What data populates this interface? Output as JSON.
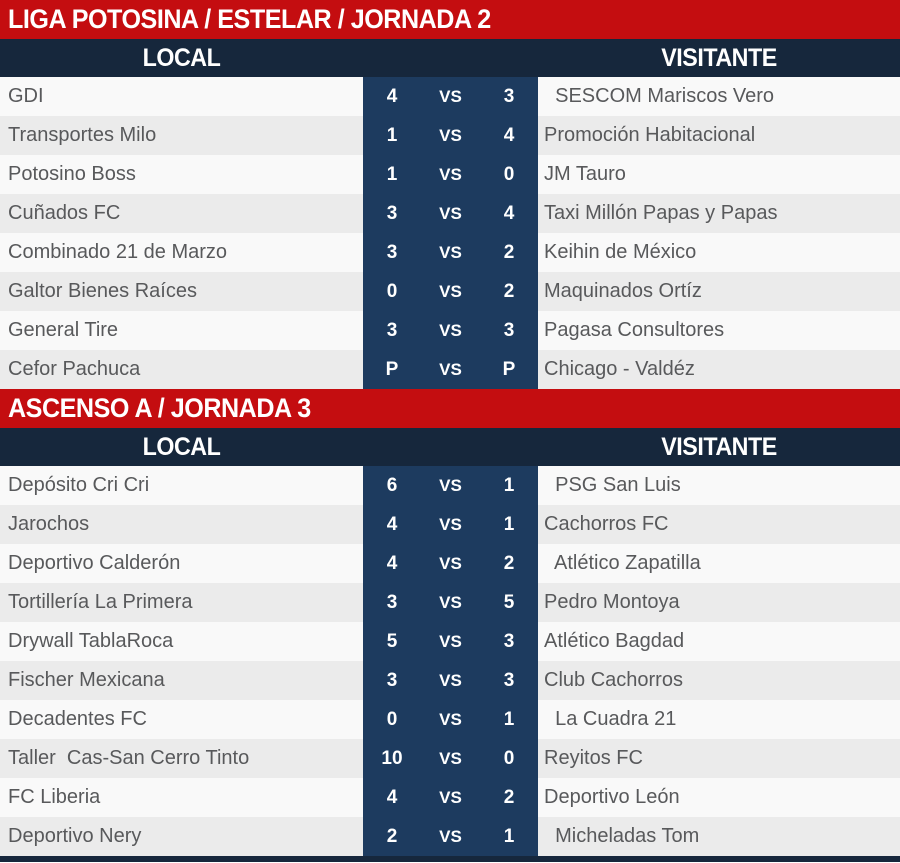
{
  "page": {
    "vs_label": "VS",
    "column_headers": {
      "local": "LOCAL",
      "visitante": "VISITANTE"
    },
    "colors": {
      "band_red": "#c40d10",
      "header_navy": "#16273c",
      "score_navy": "#1d3b5f",
      "row_light": "#f9f9f9",
      "row_alt": "#ebebeb",
      "team_text": "#58595b"
    }
  },
  "sections": [
    {
      "title": "LIGA POTOSINA / ESTELAR / JORNADA 2",
      "matches": [
        {
          "local": "GDI",
          "local_score": "4",
          "visitante_score": "3",
          "visitante": "  SESCOM Mariscos Vero"
        },
        {
          "local": "Transportes Milo",
          "local_score": "1",
          "visitante_score": "4",
          "visitante": "Promoción Habitacional"
        },
        {
          "local": "Potosino Boss",
          "local_score": "1",
          "visitante_score": "0",
          "visitante": "JM Tauro"
        },
        {
          "local": "Cuñados FC",
          "local_score": "3",
          "visitante_score": "4",
          "visitante": "Taxi Millón Papas y Papas"
        },
        {
          "local": "Combinado 21 de Marzo",
          "local_score": "3",
          "visitante_score": "2",
          "visitante": "Keihin de México"
        },
        {
          "local": "Galtor Bienes Raíces",
          "local_score": "0",
          "visitante_score": "2",
          "visitante": "Maquinados Ortíz"
        },
        {
          "local": "General Tire",
          "local_score": "3",
          "visitante_score": "3",
          "visitante": "Pagasa Consultores"
        },
        {
          "local": "Cefor Pachuca",
          "local_score": "P",
          "visitante_score": "P",
          "visitante": "Chicago - Valdéz"
        }
      ]
    },
    {
      "title": "ASCENSO A / JORNADA 3",
      "matches": [
        {
          "local": "Depósito Cri Cri",
          "local_score": "6",
          "visitante_score": "1",
          "visitante": "  PSG San Luis"
        },
        {
          "local": "Jarochos",
          "local_score": "4",
          "visitante_score": "1",
          "visitante": "Cachorros FC"
        },
        {
          "local": "Deportivo Calderón",
          "local_score": "4",
          "visitante_score": "2",
          "visitante": "  Atlético Zapatilla"
        },
        {
          "local": "Tortillería La Primera",
          "local_score": "3",
          "visitante_score": "5",
          "visitante": "Pedro Montoya"
        },
        {
          "local": "Drywall TablaRoca",
          "local_score": "5",
          "visitante_score": "3",
          "visitante": "Atlético Bagdad"
        },
        {
          "local": "Fischer Mexicana",
          "local_score": "3",
          "visitante_score": "3",
          "visitante": "Club Cachorros"
        },
        {
          "local": "Decadentes FC",
          "local_score": "0",
          "visitante_score": "1",
          "visitante": "  La Cuadra 21"
        },
        {
          "local": "Taller  Cas-San Cerro Tinto",
          "local_score": "10",
          "visitante_score": "0",
          "visitante": "Reyitos FC"
        },
        {
          "local": "FC Liberia",
          "local_score": "4",
          "visitante_score": "2",
          "visitante": "Deportivo León"
        },
        {
          "local": "Deportivo Nery",
          "local_score": "2",
          "visitante_score": "1",
          "visitante": "  Micheladas Tom"
        }
      ]
    }
  ]
}
